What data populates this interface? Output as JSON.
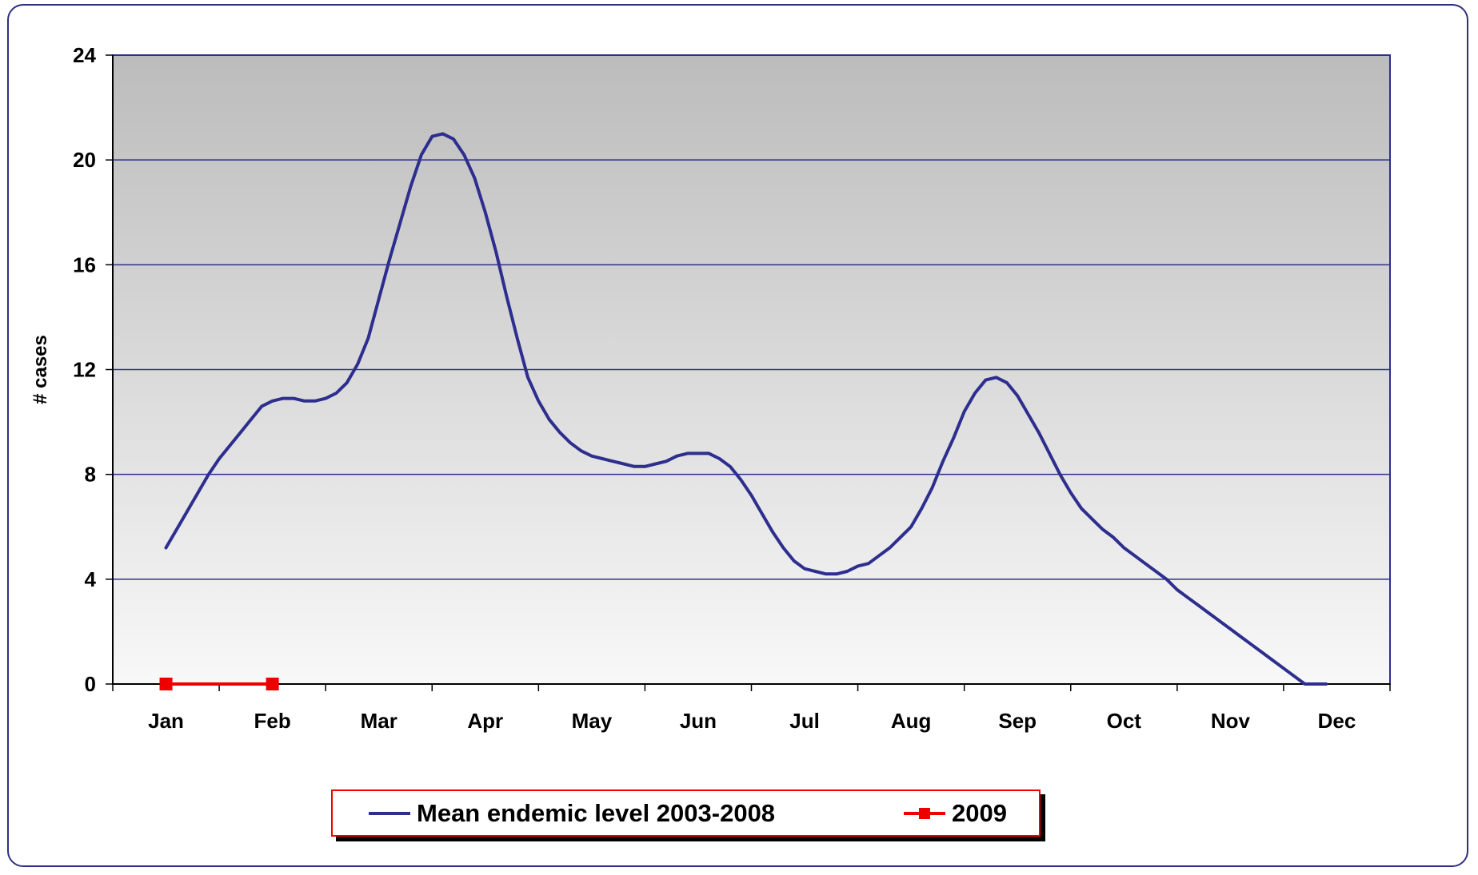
{
  "chart_data": {
    "type": "line",
    "ylabel": "# cases",
    "xlabel": "",
    "title": "",
    "ylim": [
      0,
      24
    ],
    "yticks": [
      0,
      4,
      8,
      12,
      16,
      20,
      24
    ],
    "categories": [
      "Jan",
      "Feb",
      "Mar",
      "Apr",
      "May",
      "Jun",
      "Jul",
      "Aug",
      "Sep",
      "Oct",
      "Nov",
      "Dec"
    ],
    "grid": "horizontal",
    "legend_position": "bottom",
    "series": [
      {
        "name": "Mean endemic level 2003-2008",
        "color": "#2e2e8f",
        "marker": "none",
        "x": [
          0.0,
          0.1,
          0.2,
          0.3,
          0.4,
          0.5,
          0.6,
          0.7,
          0.8,
          0.9,
          1.0,
          1.1,
          1.2,
          1.3,
          1.4,
          1.5,
          1.6,
          1.7,
          1.8,
          1.9,
          2.0,
          2.1,
          2.2,
          2.3,
          2.4,
          2.5,
          2.6,
          2.7,
          2.8,
          2.9,
          3.0,
          3.1,
          3.2,
          3.3,
          3.4,
          3.5,
          3.6,
          3.7,
          3.8,
          3.9,
          4.0,
          4.1,
          4.2,
          4.3,
          4.4,
          4.5,
          4.6,
          4.7,
          4.8,
          4.9,
          5.0,
          5.1,
          5.2,
          5.3,
          5.4,
          5.5,
          5.6,
          5.7,
          5.8,
          5.9,
          6.0,
          6.1,
          6.2,
          6.3,
          6.4,
          6.5,
          6.6,
          6.7,
          6.8,
          6.9,
          7.0,
          7.1,
          7.2,
          7.3,
          7.4,
          7.5,
          7.6,
          7.7,
          7.8,
          7.9,
          8.0,
          8.1,
          8.2,
          8.3,
          8.4,
          8.5,
          8.6,
          8.7,
          8.8,
          8.9,
          9.0,
          9.1,
          9.2,
          9.3,
          9.4,
          9.5,
          9.6,
          9.7,
          9.8,
          9.9,
          10.0,
          10.1,
          10.2,
          10.3,
          10.4,
          10.5,
          10.6,
          10.7,
          10.8,
          10.9,
          11.0,
          11.1
        ],
        "values": [
          5.2,
          5.9,
          6.6,
          7.3,
          8.0,
          8.6,
          9.1,
          9.6,
          10.1,
          10.6,
          10.8,
          10.9,
          10.9,
          10.8,
          10.8,
          10.9,
          11.1,
          11.5,
          12.2,
          13.2,
          14.7,
          16.2,
          17.6,
          19.0,
          20.2,
          20.9,
          21.0,
          20.8,
          20.2,
          19.3,
          18.0,
          16.5,
          14.8,
          13.2,
          11.7,
          10.8,
          10.1,
          9.6,
          9.2,
          8.9,
          8.7,
          8.6,
          8.5,
          8.4,
          8.3,
          8.3,
          8.4,
          8.5,
          8.7,
          8.8,
          8.8,
          8.8,
          8.6,
          8.3,
          7.8,
          7.2,
          6.5,
          5.8,
          5.2,
          4.7,
          4.4,
          4.3,
          4.2,
          4.2,
          4.3,
          4.5,
          4.6,
          4.9,
          5.2,
          5.6,
          6.0,
          6.7,
          7.5,
          8.5,
          9.4,
          10.4,
          11.1,
          11.6,
          11.7,
          11.5,
          11.0,
          10.3,
          9.6,
          8.8,
          8.0,
          7.3,
          6.7,
          6.3,
          5.9,
          5.6,
          5.2,
          4.9,
          4.6,
          4.3,
          4.0,
          3.6,
          3.3,
          3.0,
          2.7,
          2.4,
          2.1,
          1.8,
          1.5,
          1.2,
          0.9,
          0.6,
          0.3,
          0.0,
          0.0,
          0.0,
          0.0,
          0.0
        ]
      },
      {
        "name": "2009",
        "color": "#ee0000",
        "marker": "square",
        "x": [
          0,
          1
        ],
        "values": [
          0,
          0
        ]
      }
    ]
  },
  "legend": {
    "items": [
      {
        "label": "Mean endemic level 2003-2008"
      },
      {
        "label": "2009"
      }
    ]
  }
}
